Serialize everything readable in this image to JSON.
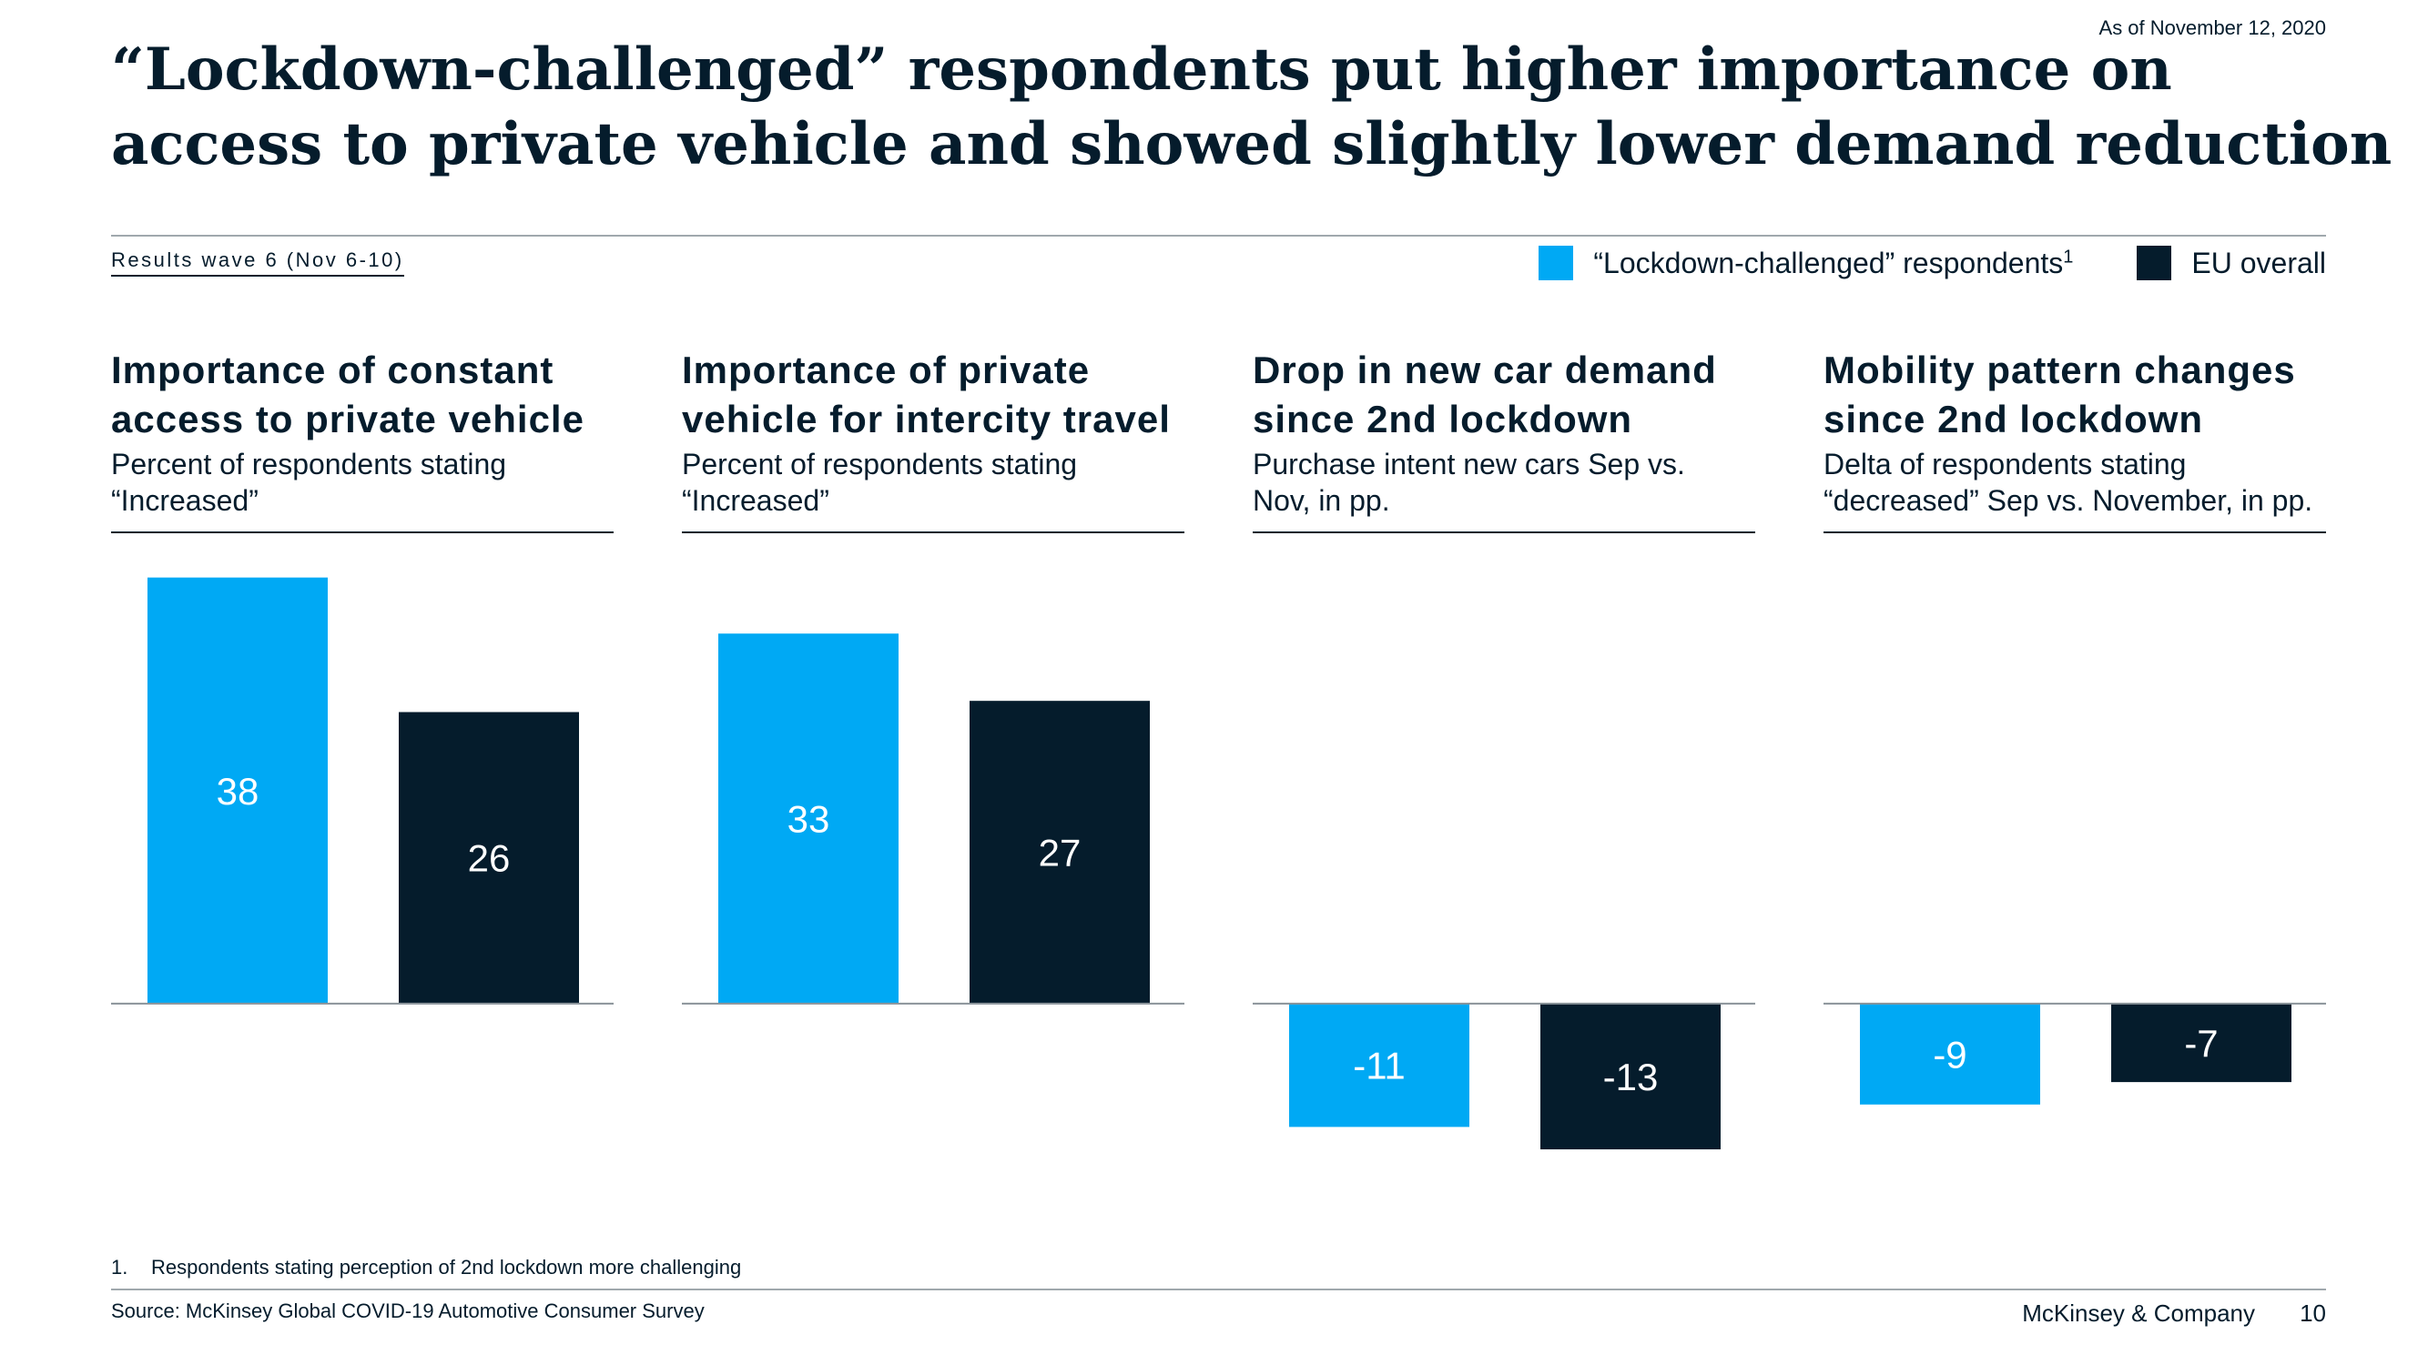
{
  "date_note": "As of November 12, 2020",
  "title_lines": [
    "“Lockdown-challenged” respondents put higher importance on",
    "access to private vehicle and showed slightly lower demand reduction"
  ],
  "wave_label": "Results wave 6 (Nov 6-10)",
  "colors": {
    "lockdown": "#00a9f4",
    "eu": "#051c2c",
    "text": "#051c2c",
    "rule": "#a0a8ad"
  },
  "legend": {
    "lockdown": "“Lockdown-challenged” respondents",
    "lockdown_sup": "1",
    "eu": "EU overall"
  },
  "chart_data": [
    {
      "type": "bar",
      "title_lines": [
        "Importance of constant",
        "access to private vehicle"
      ],
      "subtitle_lines": [
        "Percent of respondents stating",
        "“Increased”"
      ],
      "categories": [
        "“Lockdown-challenged” respondents",
        "EU overall"
      ],
      "values": [
        38,
        26
      ],
      "value_labels": [
        "38",
        "26"
      ],
      "ylim": [
        -16,
        40
      ],
      "grid": false
    },
    {
      "type": "bar",
      "title_lines": [
        "Importance of private",
        "vehicle for intercity travel"
      ],
      "subtitle_lines": [
        "Percent of respondents stating",
        "“Increased”"
      ],
      "categories": [
        "“Lockdown-challenged” respondents",
        "EU overall"
      ],
      "values": [
        33,
        27
      ],
      "value_labels": [
        "33",
        "27"
      ],
      "ylim": [
        -16,
        40
      ],
      "grid": false
    },
    {
      "type": "bar",
      "title_lines": [
        "Drop in new car demand",
        "since 2nd lockdown"
      ],
      "subtitle_lines": [
        "Purchase intent new cars Sep vs.",
        "Nov, in pp."
      ],
      "categories": [
        "“Lockdown-challenged” respondents",
        "EU overall"
      ],
      "values": [
        -11,
        -13
      ],
      "value_labels": [
        "-11",
        "-13"
      ],
      "ylim": [
        -16,
        40
      ],
      "grid": false
    },
    {
      "type": "bar",
      "title_lines": [
        "Mobility pattern changes",
        "since 2nd lockdown"
      ],
      "subtitle_lines": [
        "Delta of respondents stating",
        "“decreased” Sep vs. November, in pp."
      ],
      "categories": [
        "“Lockdown-challenged” respondents",
        "EU overall"
      ],
      "values": [
        -9,
        -7
      ],
      "value_labels": [
        "-9",
        "-7"
      ],
      "ylim": [
        -16,
        40
      ],
      "grid": false
    }
  ],
  "footnote": {
    "number": "1.",
    "text": "Respondents stating perception of 2nd lockdown more challenging"
  },
  "source": "Source: McKinsey Global COVID-19 Automotive Consumer Survey",
  "company": "McKinsey & Company",
  "page_number": "10"
}
